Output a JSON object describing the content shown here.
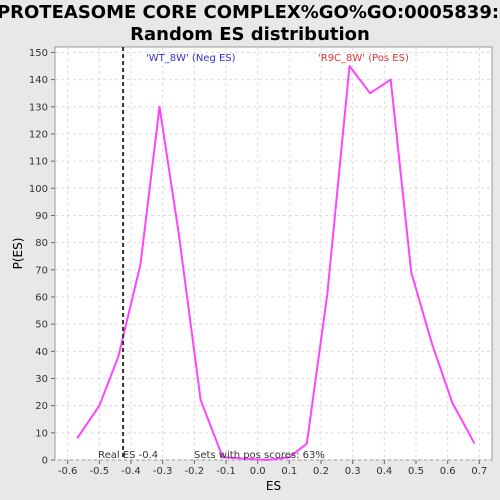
{
  "chart_data": {
    "type": "line",
    "title_lines": [
      "PROTEASOME CORE COMPLEX%GO%GO:0005839:",
      "Random ES distribution"
    ],
    "xlabel": "ES",
    "ylabel": "P(ES)",
    "xlim": [
      -0.64,
      0.74
    ],
    "ylim": [
      0,
      152
    ],
    "xticks": [
      -0.6,
      -0.5,
      -0.4,
      -0.3,
      -0.2,
      -0.1,
      0.0,
      0.1,
      0.2,
      0.3,
      0.4,
      0.5,
      0.6,
      0.7
    ],
    "xtick_labels": [
      "-0.6",
      "-0.5",
      "-0.4",
      "-0.3",
      "-0.2",
      "-0.1",
      "0.0",
      "0.1",
      "0.2",
      "0.3",
      "0.4",
      "0.5",
      "0.6",
      "0.7"
    ],
    "yticks": [
      0,
      10,
      20,
      30,
      40,
      50,
      60,
      70,
      80,
      90,
      100,
      110,
      120,
      130,
      140,
      150
    ],
    "ytick_labels": [
      "0",
      "10",
      "20",
      "30",
      "40",
      "50",
      "60",
      "70",
      "80",
      "90",
      "100",
      "110",
      "120",
      "130",
      "140",
      "150"
    ],
    "grid": true,
    "series": [
      {
        "name": "Random ES distribution",
        "color": "#ff44ff",
        "x": [
          -0.57,
          -0.5,
          -0.44,
          -0.37,
          -0.31,
          -0.25,
          -0.18,
          -0.11,
          0.03,
          0.1,
          0.155,
          0.22,
          0.29,
          0.355,
          0.42,
          0.485,
          0.55,
          0.615,
          0.685
        ],
        "y": [
          8,
          20,
          38,
          72,
          130,
          84,
          22,
          1,
          0,
          1,
          6,
          61,
          145,
          135,
          140,
          69,
          43,
          21,
          6
        ]
      }
    ],
    "real_es": {
      "x": -0.425,
      "label": "Real ES -0.4",
      "line_color": "#333333"
    },
    "annotations": {
      "neg": {
        "text": "'WT_8W' (Neg ES)",
        "color": "#3333cc"
      },
      "pos": {
        "text": "'R9C_8W' (Pos ES)",
        "color": "#dd3333"
      },
      "sets": {
        "text": "Sets with pos scores: 63%",
        "color": "#333333"
      }
    }
  }
}
